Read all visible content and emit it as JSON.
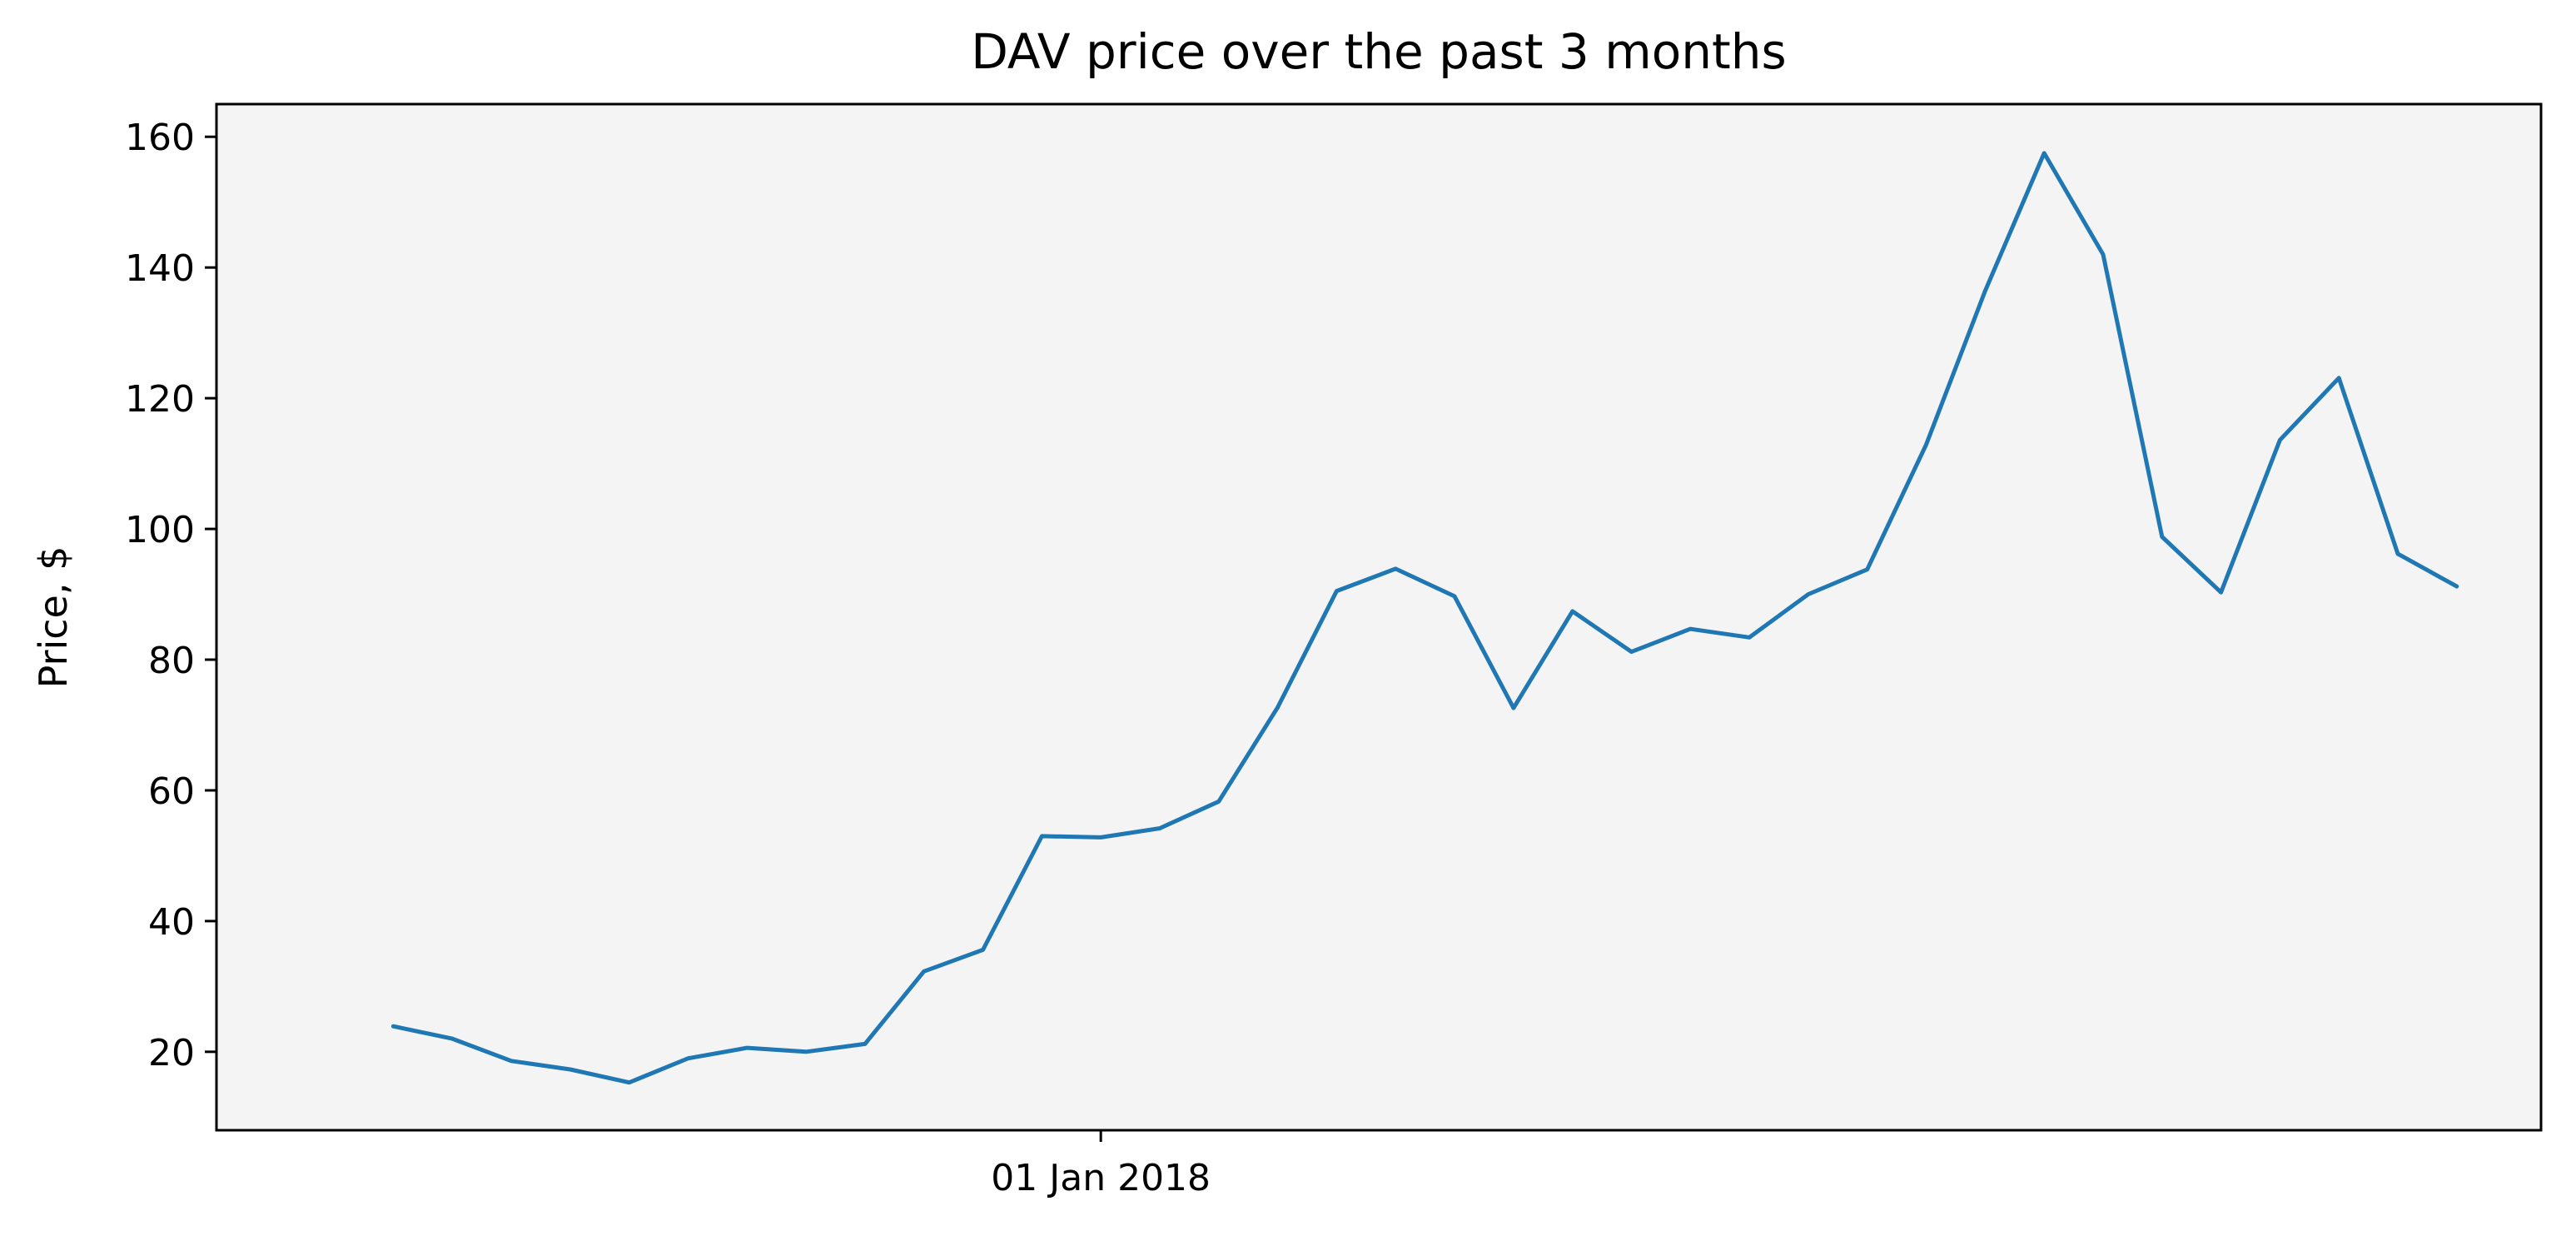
{
  "chart_data": {
    "type": "line",
    "title": "DAV price over the past 3 months",
    "xlabel": "",
    "ylabel": "Price, $",
    "x": [
      "2017-10-08",
      "2017-10-15",
      "2017-10-22",
      "2017-10-29",
      "2017-11-05",
      "2017-11-12",
      "2017-11-19",
      "2017-11-26",
      "2017-12-03",
      "2017-12-10",
      "2017-12-17",
      "2017-12-24",
      "2017-12-31",
      "2018-01-07",
      "2018-01-14",
      "2018-01-21",
      "2018-01-28",
      "2018-02-04",
      "2018-02-11",
      "2018-02-18",
      "2018-02-25",
      "2018-03-04",
      "2018-03-11",
      "2018-03-18",
      "2018-03-25",
      "2018-04-01",
      "2018-04-08",
      "2018-04-15",
      "2018-04-22",
      "2018-04-29",
      "2018-05-06",
      "2018-05-13",
      "2018-05-20",
      "2018-05-27",
      "2018-06-03",
      "2018-06-10"
    ],
    "series": [
      {
        "values": [
          23.9,
          22.0,
          18.6,
          17.3,
          15.3,
          19.0,
          20.6,
          20.0,
          21.2,
          32.3,
          35.6,
          53.0,
          52.8,
          54.2,
          58.3,
          72.7,
          90.5,
          93.9,
          89.7,
          72.6,
          87.4,
          81.2,
          84.7,
          83.4,
          90.0,
          93.8,
          112.9,
          136.4,
          157.5,
          142.0,
          98.8,
          90.3,
          113.6,
          123.1,
          96.2,
          91.2
        ]
      }
    ],
    "x_ticks": [
      {
        "value": "2017-12-31",
        "label": "01 Jan 2018"
      }
    ],
    "y_ticks": [
      20,
      40,
      60,
      80,
      100,
      120,
      140,
      160
    ],
    "xlim": [
      "2017-09-17",
      "2018-06-20"
    ],
    "ylim": [
      8,
      165
    ],
    "grid": false,
    "legend": "none",
    "colors": {
      "line": "#1f77b4",
      "plot_background": "#f4f4f4",
      "axes": "#000000"
    }
  }
}
